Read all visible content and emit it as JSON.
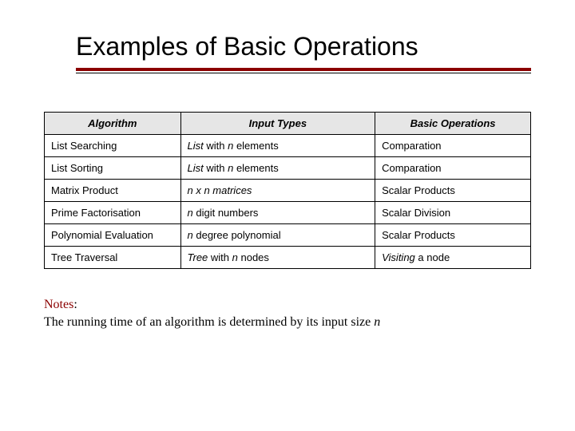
{
  "title": "Examples of Basic Operations",
  "columns": [
    "Algorithm",
    "Input Types",
    "Basic Operations"
  ],
  "rows": [
    {
      "algorithm": "List Searching",
      "input_prefix": "List ",
      "input_mid": "with ",
      "input_var": "n",
      "input_suffix": " elements",
      "basic": "Comparation",
      "basic_italic": ""
    },
    {
      "algorithm": "List Sorting",
      "input_prefix": "List ",
      "input_mid": "with ",
      "input_var": "n",
      "input_suffix": " elements",
      "basic": "Comparation",
      "basic_italic": ""
    },
    {
      "algorithm": "Matrix Product",
      "input_prefix": "",
      "input_mid": "",
      "input_var": "n x n matrices",
      "input_suffix": "",
      "basic": "Scalar Products",
      "basic_italic": ""
    },
    {
      "algorithm": "Prime Factorisation",
      "input_prefix": "",
      "input_mid": "",
      "input_var": "n",
      "input_suffix": " digit numbers",
      "basic": "Scalar Division",
      "basic_italic": ""
    },
    {
      "algorithm": "Polynomial Evaluation",
      "input_prefix": "",
      "input_mid": "",
      "input_var": "n",
      "input_suffix": " degree polynomial",
      "basic": "Scalar Products",
      "basic_italic": ""
    },
    {
      "algorithm": "Tree Traversal",
      "input_prefix": "Tree ",
      "input_mid": "with ",
      "input_var": "n",
      "input_suffix": " nodes",
      "basic": " a node",
      "basic_italic": "Visiting"
    }
  ],
  "notes_label": "Notes",
  "notes_colon": ":",
  "notes_text_1": "The running time of an algorithm is determined by its input size ",
  "notes_var": "n",
  "colors": {
    "accent": "#8b0000",
    "header_bg": "#e6e6e6",
    "border": "#000000",
    "background": "#ffffff"
  },
  "typography": {
    "title_fontsize": 32,
    "table_fontsize": 13,
    "notes_fontsize": 16
  }
}
